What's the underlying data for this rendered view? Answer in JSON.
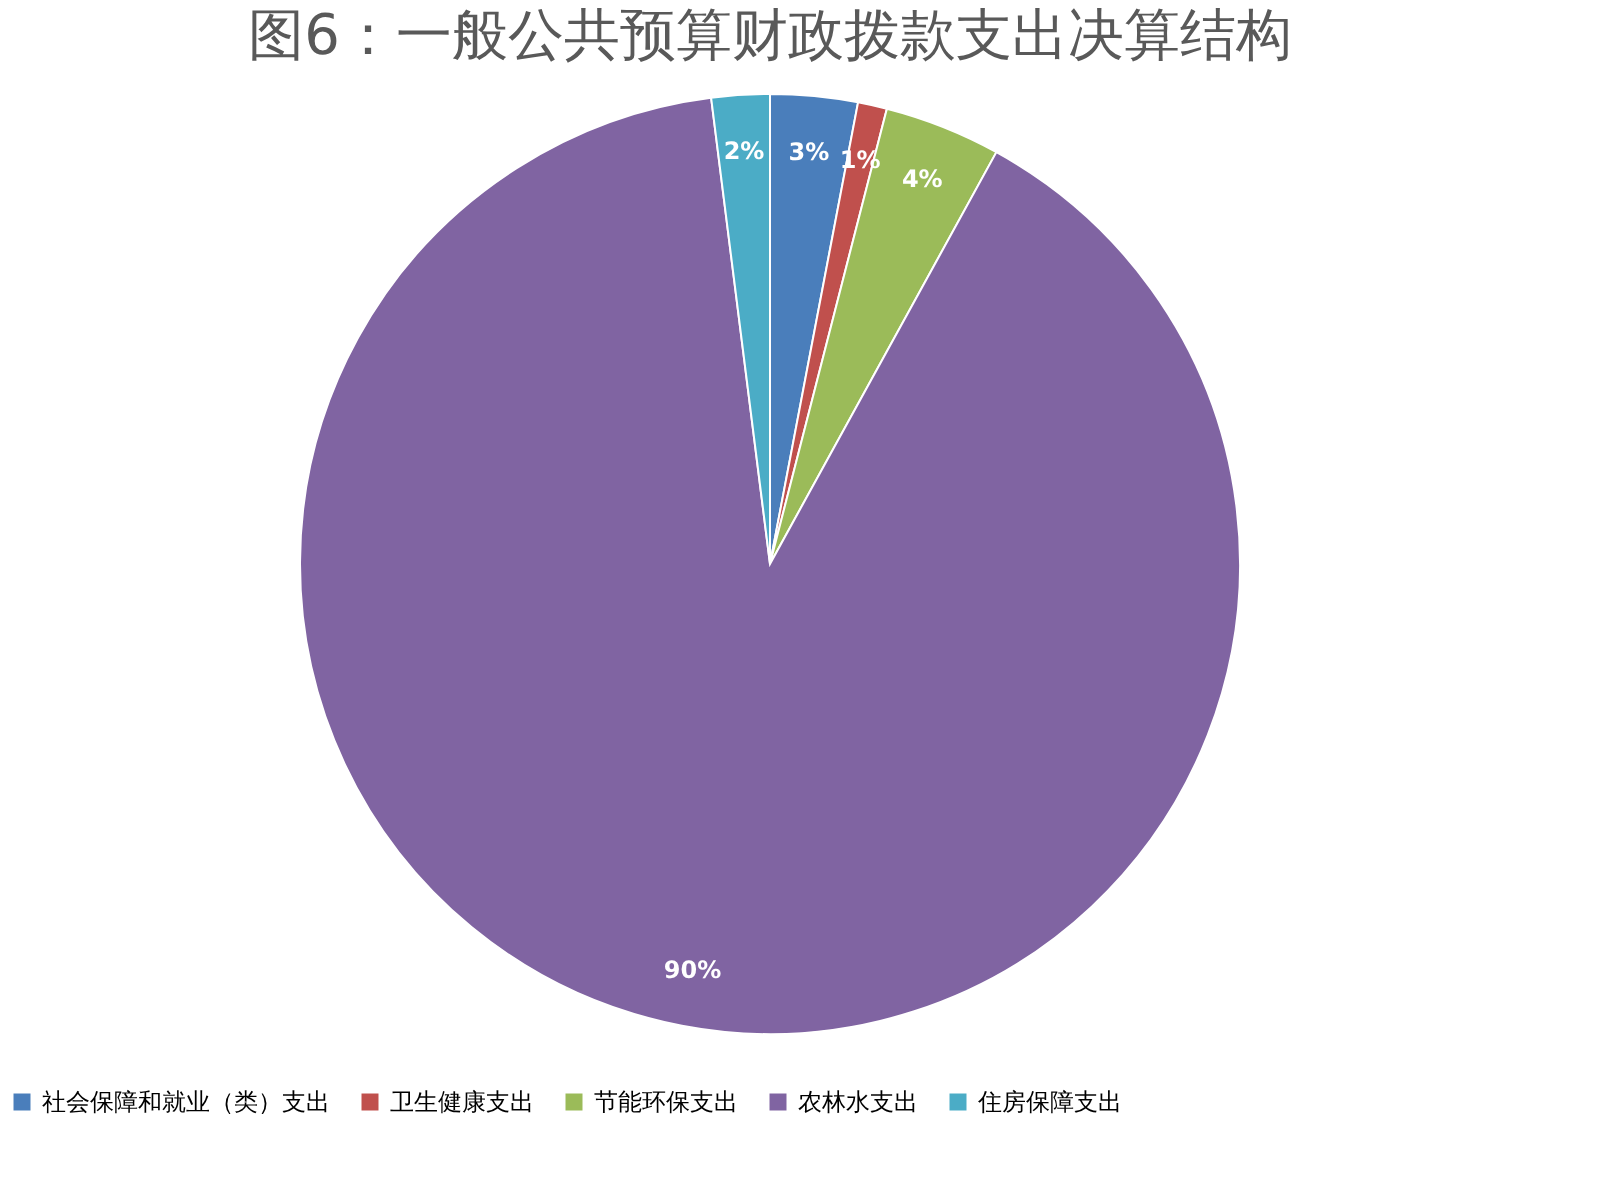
{
  "chart_data": {
    "type": "pie",
    "title": "图6：一般公共预算财政拨款支出决算结构",
    "categories": [
      "社会保障和就业（类）支出",
      "卫生健康支出",
      "节能环保支出",
      "农林水支出",
      "住房保障支出"
    ],
    "values": [
      3,
      1,
      4,
      90,
      2
    ],
    "colors": [
      "#4a7ebb",
      "#c0504d",
      "#9bbb59",
      "#8064a2",
      "#4bacc6"
    ],
    "value_labels": [
      "3%",
      "1%",
      "4%",
      "90%",
      "2%"
    ],
    "legend": "bottom"
  }
}
